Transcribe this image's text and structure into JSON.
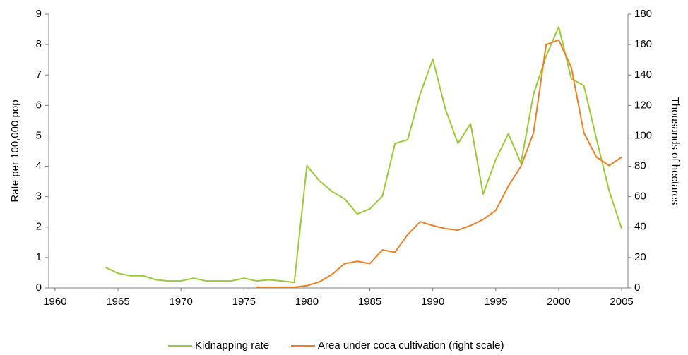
{
  "chart_data": {
    "type": "line",
    "x": [
      1964,
      1965,
      1966,
      1967,
      1968,
      1969,
      1970,
      1971,
      1972,
      1973,
      1974,
      1975,
      1976,
      1977,
      1978,
      1979,
      1980,
      1981,
      1982,
      1983,
      1984,
      1985,
      1986,
      1987,
      1988,
      1989,
      1990,
      1991,
      1992,
      1993,
      1994,
      1995,
      1996,
      1997,
      1998,
      1999,
      2000,
      2001,
      2002,
      2003,
      2004,
      2005
    ],
    "series": [
      {
        "name": "Kidnapping rate",
        "color": "#99cc33",
        "axis": "y",
        "values": [
          0.68,
          0.48,
          0.4,
          0.4,
          0.27,
          0.23,
          0.23,
          0.32,
          0.23,
          0.23,
          0.23,
          0.32,
          0.23,
          0.27,
          0.23,
          0.18,
          4.02,
          3.52,
          3.17,
          2.93,
          2.43,
          2.6,
          3.02,
          4.75,
          4.87,
          6.38,
          7.52,
          5.88,
          4.75,
          5.4,
          3.08,
          4.22,
          5.07,
          4.1,
          6.37,
          7.62,
          8.58,
          6.88,
          6.65,
          4.9,
          3.2,
          1.95
        ]
      },
      {
        "name": "Area under coca cultivation (right scale)",
        "color": "#f07f22",
        "axis": "y2",
        "values": [
          null,
          null,
          null,
          null,
          null,
          null,
          null,
          null,
          null,
          null,
          null,
          null,
          0.5,
          0.5,
          0.5,
          0.5,
          1.5,
          4,
          9,
          16,
          17.5,
          16,
          25,
          23.5,
          35,
          43.5,
          41,
          39,
          38,
          41,
          45,
          51,
          67,
          80,
          102,
          160,
          163,
          145,
          102,
          86,
          80.5,
          86
        ]
      }
    ],
    "xlim": [
      1959.5,
      2005.5
    ],
    "xticks": [
      1960,
      1965,
      1970,
      1975,
      1980,
      1985,
      1990,
      1995,
      2000,
      2005
    ],
    "ylim": [
      0,
      9
    ],
    "yticks": [
      0,
      1,
      2,
      3,
      4,
      5,
      6,
      7,
      8,
      9
    ],
    "y2lim": [
      0,
      180
    ],
    "y2ticks": [
      0,
      20,
      40,
      60,
      80,
      100,
      120,
      140,
      160,
      180
    ],
    "ylabel": "Rate per 100,000 pop",
    "y2label": "Thousands of hectares"
  }
}
